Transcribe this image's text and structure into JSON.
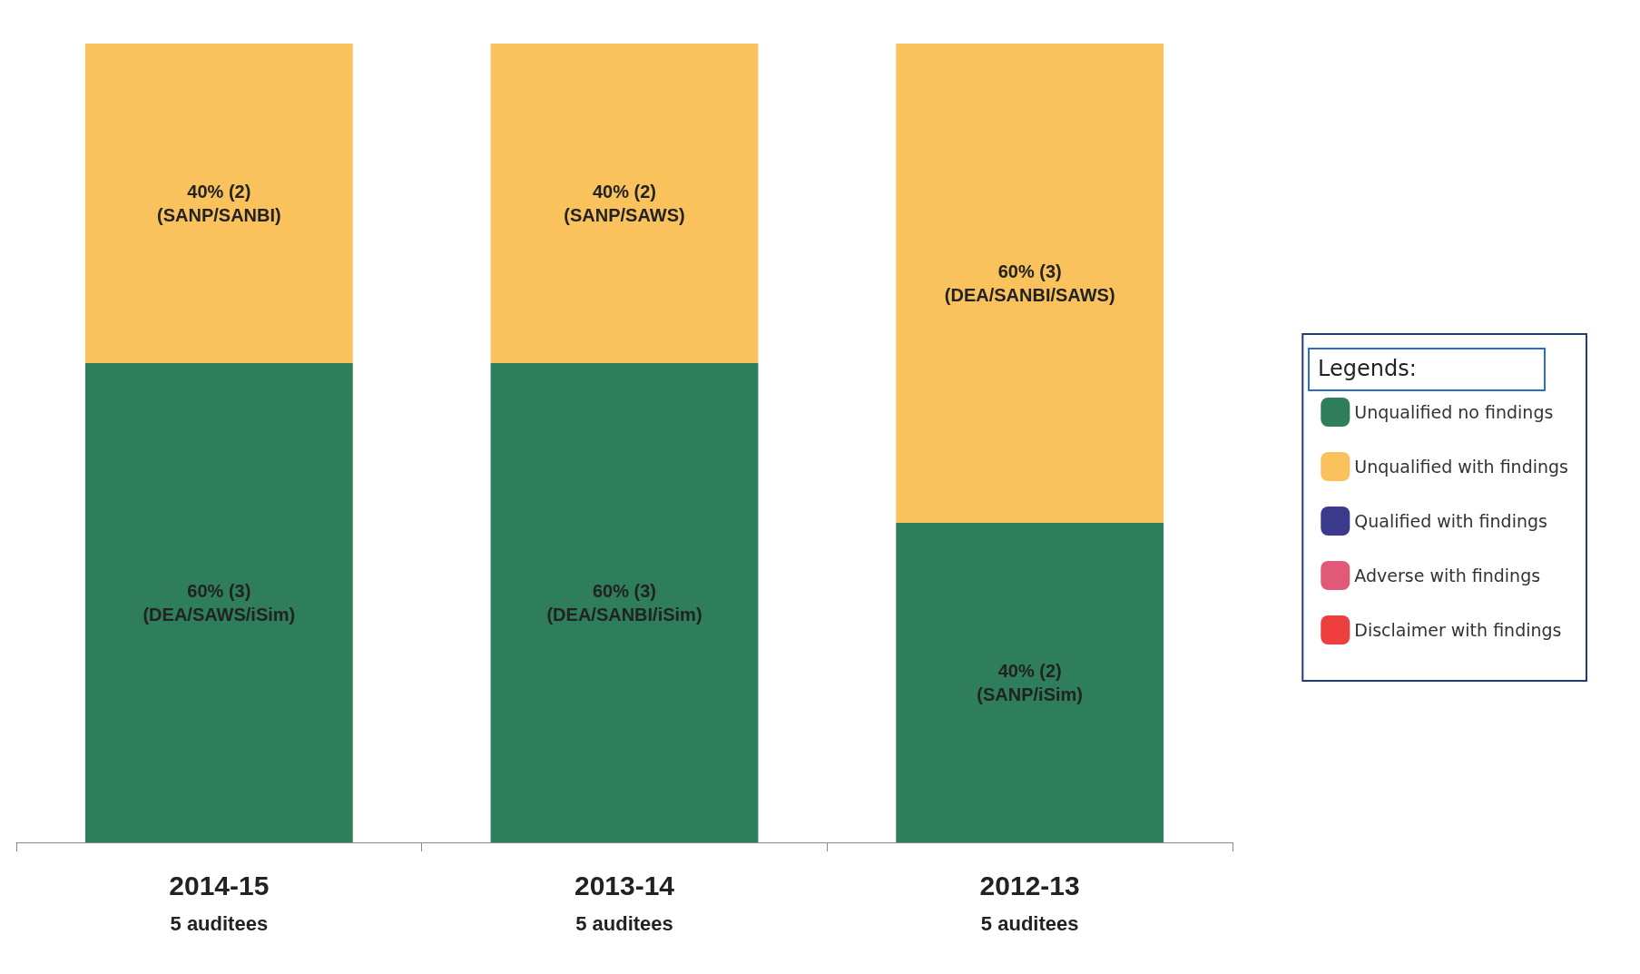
{
  "chart_data": {
    "type": "bar",
    "stacked": true,
    "categories": [
      "2014-15",
      "2013-14",
      "2012-13"
    ],
    "series": [
      {
        "name": "Unqualified no findings",
        "color": "#2e7d5b",
        "values": [
          60,
          60,
          40
        ],
        "value_labels": [
          "60% (3)\n(DEA/SAWS/iSim)",
          "60% (3)\n(DEA/SANBI/iSim)",
          "40% (2)\n(SANP/iSim)"
        ]
      },
      {
        "name": "Unqualified with findings",
        "color": "#f9c25c",
        "values": [
          40,
          40,
          60
        ],
        "value_labels": [
          "40% (2)\n(SANP/SANBI)",
          "40% (2)\n(SANP/SAWS)",
          "60% (3)\n(DEA/SANBI/SAWS)"
        ]
      },
      {
        "name": "Qualified with findings",
        "color": "#3b3a8c",
        "values": [
          null,
          null,
          null
        ]
      },
      {
        "name": "Adverse with findings",
        "color": "#e05a78",
        "values": [
          null,
          null,
          null
        ]
      },
      {
        "name": "Disclaimer with findings",
        "color": "#ee3e3e",
        "values": [
          null,
          null,
          null
        ]
      }
    ],
    "legend_title": "Legends:",
    "legend": "right",
    "grid": false,
    "annotations": [
      "5 auditees",
      "5 auditees",
      "5 auditees"
    ]
  }
}
